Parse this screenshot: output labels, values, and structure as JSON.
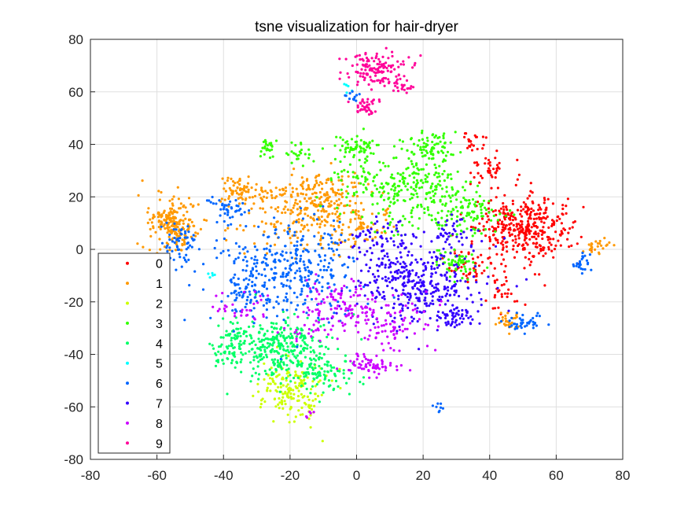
{
  "chart_data": {
    "type": "scatter",
    "title": "tsne visualization for hair-dryer",
    "xlabel": "",
    "ylabel": "",
    "xlim": [
      -80,
      80
    ],
    "ylim": [
      -80,
      80
    ],
    "xticks": [
      "-80",
      "-60",
      "-40",
      "-20",
      "0",
      "20",
      "40",
      "60",
      "80"
    ],
    "yticks": [
      "80",
      "60",
      "40",
      "20",
      "0",
      "-20",
      "-40",
      "-60",
      "-80"
    ],
    "grid": true,
    "legend_position": "bottom-left",
    "series": [
      {
        "name": "0",
        "color": "#ff0000",
        "clusters": [
          [
            50,
            8,
            7,
            6,
            380
          ],
          [
            40,
            30,
            3,
            3,
            40
          ],
          [
            35,
            -7,
            3,
            3,
            40
          ],
          [
            34,
            41,
            2,
            2,
            20
          ],
          [
            44,
            -16,
            3,
            4,
            30
          ]
        ]
      },
      {
        "name": "1",
        "color": "#ff9900",
        "clusters": [
          [
            -55,
            10,
            4,
            5,
            200
          ],
          [
            -35,
            23,
            3,
            3,
            70
          ],
          [
            -10,
            20,
            6,
            5,
            170
          ],
          [
            0,
            8,
            5,
            4,
            80
          ],
          [
            -20,
            10,
            7,
            5,
            100
          ],
          [
            46,
            -28,
            2,
            2,
            30
          ],
          [
            72,
            1,
            2,
            2,
            25
          ],
          [
            -25,
            22,
            3,
            2,
            30
          ]
        ]
      },
      {
        "name": "2",
        "color": "#ccff00",
        "clusters": [
          [
            -20,
            -53,
            5,
            6,
            170
          ]
        ]
      },
      {
        "name": "3",
        "color": "#33ff00",
        "clusters": [
          [
            0,
            39,
            3,
            2,
            60
          ],
          [
            22,
            39,
            4,
            3,
            80
          ],
          [
            -26,
            39,
            2,
            2,
            25
          ],
          [
            -17,
            37,
            2,
            2,
            25
          ],
          [
            3,
            26,
            7,
            6,
            100
          ],
          [
            20,
            24,
            7,
            6,
            160
          ],
          [
            33,
            14,
            5,
            4,
            100
          ],
          [
            30,
            -5,
            3,
            3,
            60
          ],
          [
            12,
            10,
            3,
            3,
            20
          ]
        ]
      },
      {
        "name": "4",
        "color": "#00ff66",
        "clusters": [
          [
            -23,
            -37,
            7,
            6,
            300
          ],
          [
            -37,
            -35,
            3,
            4,
            60
          ],
          [
            -10,
            -47,
            5,
            4,
            90
          ],
          [
            -40,
            -40,
            2,
            2,
            20
          ]
        ]
      },
      {
        "name": "5",
        "color": "#00ffff",
        "clusters": [
          [
            -3,
            62,
            1,
            1,
            6
          ],
          [
            -44,
            -9,
            1,
            1,
            5
          ]
        ]
      },
      {
        "name": "6",
        "color": "#0066ff",
        "clusters": [
          [
            -20,
            -8,
            10,
            10,
            350
          ],
          [
            -53,
            2,
            3,
            4,
            60
          ],
          [
            -38,
            15,
            3,
            3,
            40
          ],
          [
            50,
            -28,
            3,
            2,
            40
          ],
          [
            68,
            -5,
            1.5,
            2,
            25
          ],
          [
            25,
            -60,
            1,
            1,
            8
          ],
          [
            -1,
            58,
            1.5,
            1.5,
            12
          ],
          [
            -32,
            -16,
            4,
            4,
            50
          ]
        ]
      },
      {
        "name": "7",
        "color": "#3300ff",
        "clusters": [
          [
            18,
            -12,
            9,
            8,
            360
          ],
          [
            30,
            -26,
            3,
            2,
            50
          ],
          [
            7,
            3,
            5,
            4,
            60
          ],
          [
            28,
            6,
            4,
            3,
            40
          ]
        ]
      },
      {
        "name": "8",
        "color": "#cc00ff",
        "clusters": [
          [
            5,
            -44,
            4,
            2,
            60
          ],
          [
            -5,
            -22,
            6,
            5,
            110
          ],
          [
            10,
            -28,
            7,
            5,
            90
          ],
          [
            -35,
            -22,
            4,
            3,
            30
          ],
          [
            -15,
            -30,
            3,
            3,
            20
          ],
          [
            -14,
            -63,
            1,
            1,
            6
          ]
        ]
      },
      {
        "name": "9",
        "color": "#ff0099",
        "clusters": [
          [
            6,
            69,
            5,
            3,
            130
          ],
          [
            3,
            55,
            2,
            2,
            40
          ],
          [
            13,
            62,
            2,
            1.5,
            25
          ]
        ]
      }
    ]
  }
}
